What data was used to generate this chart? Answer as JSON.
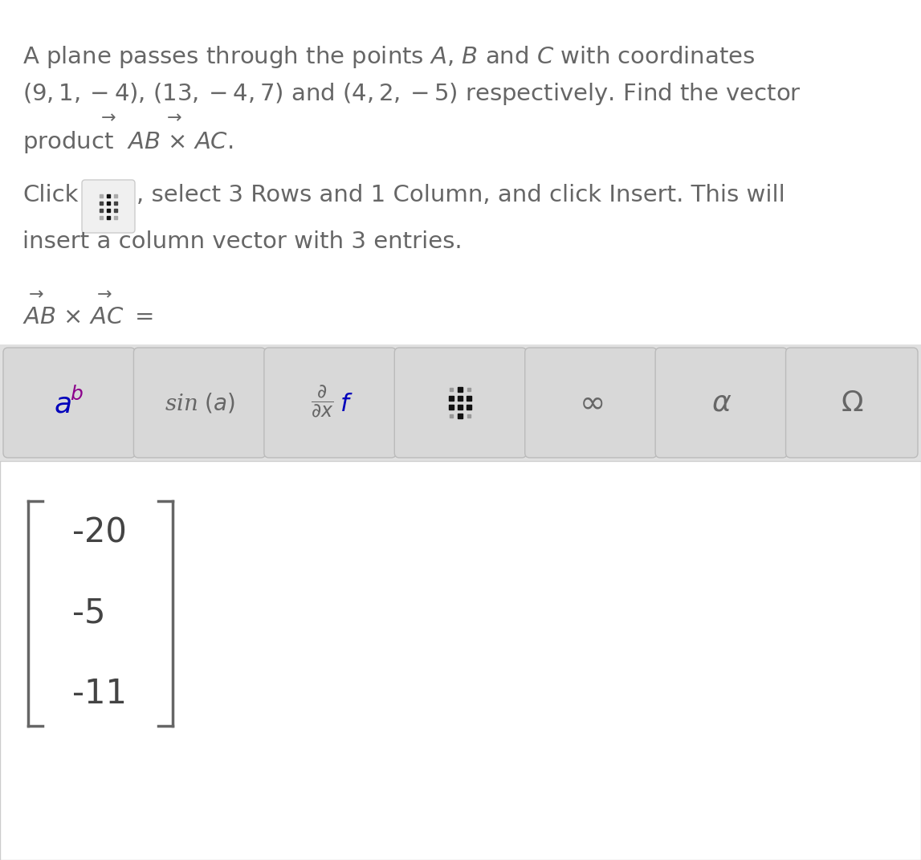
{
  "bg_color": "#ffffff",
  "text_color": "#666666",
  "gray_text": "#777777",
  "line1": "A plane passes through the points $\\mathit{A}$, $\\mathit{B}$ and $\\mathit{C}$ with coordinates",
  "line2": "$(9, 1, -4)$, $(13, -4, 7)$ and $(4, 2, -5)$ respectively. Find the vector",
  "line3_word": "product",
  "line3_formula": "$\\mathit{AB} \\times \\mathit{AC}$.",
  "click_pre": "Click",
  "click_post": ", select 3 Rows and 1 Column, and click Insert. This will",
  "insert_line": "insert a column vector with 3 entries.",
  "ab_ac_eq": "$\\mathit{AB} \\times \\mathit{AC} =$",
  "vector_values": [
    "-20",
    "-5",
    "-11"
  ],
  "toolbar_bg": "#e0e0e0",
  "btn_bg": "#d0d0d0",
  "answer_bg": "#ffffff",
  "answer_border": "#cccccc",
  "purple_color": "#8B008B",
  "blue_color": "#0000BB",
  "bracket_color": "#666666",
  "fs_main": 21,
  "fs_vector": 30
}
